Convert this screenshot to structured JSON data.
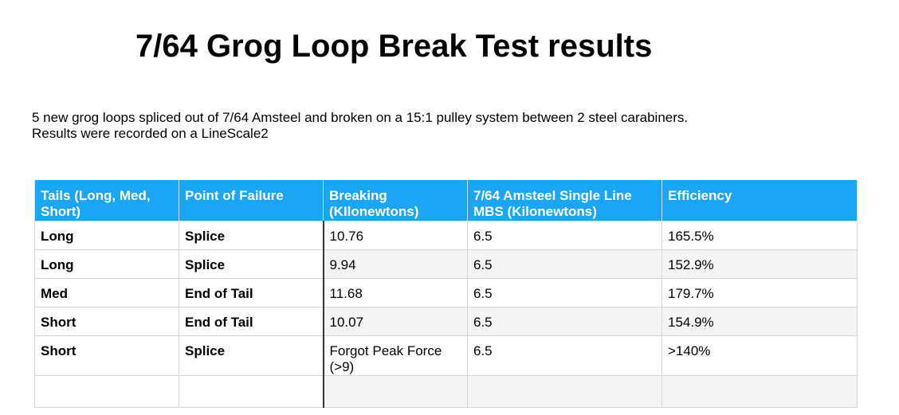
{
  "title": "7/64 Grog Loop Break Test results",
  "description": {
    "line1": "5 new grog loops spliced out of 7/64 Amsteel and broken on a 15:1 pulley system between 2 steel carabiners.",
    "line2": "Results were recorded on a LineScale2"
  },
  "table": {
    "headers": [
      "Tails (Long, Med, Short)",
      "Point of Failure",
      "Breaking (KIlonewtons)",
      "7/64 Amsteel Single Line MBS (Kilonewtons)",
      "Efficiency"
    ],
    "rows": [
      [
        "Long",
        "Splice",
        "10.76",
        "6.5",
        "165.5%"
      ],
      [
        "Long",
        "Splice",
        "9.94",
        "6.5",
        "152.9%"
      ],
      [
        "Med",
        "End of Tail",
        "11.68",
        "6.5",
        "179.7%"
      ],
      [
        "Short",
        "End of Tail",
        "10.07",
        "6.5",
        "154.9%"
      ],
      [
        "Short",
        "Splice",
        "Forgot Peak Force (>9)",
        "6.5",
        ">140%"
      ],
      [
        "",
        "",
        "",
        "",
        ""
      ]
    ]
  },
  "colors": {
    "header_background": "#1aa6f5",
    "header_text": "#ffffff",
    "alt_row_shade": "#f4f4f4"
  }
}
